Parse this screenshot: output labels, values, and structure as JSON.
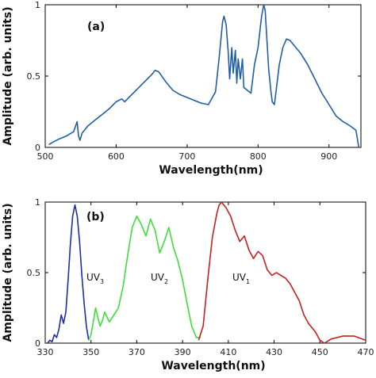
{
  "chart_data": [
    {
      "type": "line",
      "panel_label": "(a)",
      "xlabel": "Wavelength(nm)",
      "ylabel": "Amplitude (arb. units)",
      "xlim": [
        500,
        945
      ],
      "ylim": [
        0,
        1
      ],
      "xticks": [
        500,
        600,
        700,
        800,
        900
      ],
      "yticks": [
        0,
        0.5,
        1
      ],
      "ytick_labels": [
        "0",
        "0.5",
        "1"
      ],
      "series": [
        {
          "color": "#1f5fa8",
          "x": [
            505,
            512,
            520,
            530,
            540,
            545,
            547,
            549,
            552,
            560,
            570,
            580,
            590,
            600,
            608,
            612,
            620,
            630,
            640,
            650,
            655,
            660,
            670,
            680,
            690,
            700,
            710,
            720,
            730,
            740,
            745,
            750,
            752,
            755,
            758,
            760,
            763,
            765,
            768,
            770,
            772,
            775,
            778,
            780,
            785,
            790,
            795,
            800,
            805,
            808,
            810,
            812,
            815,
            818,
            820,
            823,
            826,
            830,
            835,
            840,
            845,
            850,
            860,
            870,
            880,
            890,
            900,
            910,
            920,
            930,
            938,
            942
          ],
          "y": [
            0.02,
            0.04,
            0.06,
            0.08,
            0.11,
            0.18,
            0.08,
            0.05,
            0.1,
            0.15,
            0.19,
            0.23,
            0.27,
            0.32,
            0.34,
            0.32,
            0.36,
            0.41,
            0.46,
            0.51,
            0.54,
            0.53,
            0.46,
            0.4,
            0.37,
            0.35,
            0.33,
            0.31,
            0.3,
            0.39,
            0.62,
            0.88,
            0.92,
            0.86,
            0.66,
            0.48,
            0.7,
            0.52,
            0.68,
            0.45,
            0.62,
            0.48,
            0.62,
            0.42,
            0.4,
            0.38,
            0.58,
            0.7,
            0.92,
            1.0,
            0.96,
            0.8,
            0.55,
            0.4,
            0.32,
            0.3,
            0.42,
            0.58,
            0.7,
            0.76,
            0.75,
            0.72,
            0.66,
            0.58,
            0.48,
            0.38,
            0.3,
            0.22,
            0.18,
            0.15,
            0.12,
            0.0
          ]
        }
      ]
    },
    {
      "type": "line",
      "panel_label": "(b)",
      "xlabel": "Wavelength(nm)",
      "ylabel": "Amplitude (arb. units)",
      "xlim": [
        330,
        470
      ],
      "ylim": [
        0,
        1
      ],
      "xticks": [
        330,
        350,
        370,
        390,
        410,
        430,
        450,
        470
      ],
      "yticks": [
        0,
        0.5,
        1
      ],
      "ytick_labels": [
        "0",
        "0.5",
        "1"
      ],
      "series": [
        {
          "name_main": "UV",
          "name_sub": "3",
          "color": "#1a2fa8",
          "x": [
            331,
            332,
            333,
            334,
            335,
            336,
            337,
            338,
            339,
            340,
            341,
            342,
            343,
            344,
            345,
            346,
            347,
            348,
            349
          ],
          "y": [
            0.0,
            0.02,
            0.01,
            0.06,
            0.04,
            0.1,
            0.2,
            0.14,
            0.22,
            0.45,
            0.7,
            0.9,
            0.98,
            0.9,
            0.72,
            0.48,
            0.28,
            0.12,
            0.02
          ]
        },
        {
          "name_main": "UV",
          "name_sub": "2",
          "color": "#3adf3a",
          "x": [
            349,
            350,
            351,
            352,
            353,
            354,
            355,
            356,
            358,
            360,
            362,
            364,
            366,
            368,
            370,
            372,
            374,
            376,
            378,
            380,
            382,
            384,
            386,
            388,
            390,
            392,
            394,
            396,
            398
          ],
          "y": [
            0.02,
            0.06,
            0.15,
            0.25,
            0.18,
            0.12,
            0.16,
            0.22,
            0.15,
            0.2,
            0.25,
            0.4,
            0.62,
            0.82,
            0.9,
            0.84,
            0.76,
            0.88,
            0.8,
            0.64,
            0.72,
            0.82,
            0.68,
            0.58,
            0.45,
            0.28,
            0.12,
            0.04,
            0.04
          ]
        },
        {
          "name_main": "UV",
          "name_sub": "1",
          "color": "#c42020",
          "x": [
            397,
            399,
            401,
            403,
            405,
            406,
            407,
            409,
            411,
            413,
            415,
            417,
            419,
            421,
            423,
            425,
            427,
            429,
            431,
            433,
            435,
            437,
            439,
            441,
            443,
            445,
            448,
            450,
            452,
            455,
            460,
            465,
            470
          ],
          "y": [
            0.02,
            0.12,
            0.45,
            0.75,
            0.92,
            0.98,
            1.0,
            0.96,
            0.9,
            0.8,
            0.72,
            0.76,
            0.66,
            0.6,
            0.65,
            0.62,
            0.52,
            0.48,
            0.5,
            0.48,
            0.46,
            0.42,
            0.36,
            0.3,
            0.2,
            0.14,
            0.08,
            0.02,
            0.0,
            0.03,
            0.05,
            0.05,
            0.02
          ]
        }
      ]
    }
  ]
}
